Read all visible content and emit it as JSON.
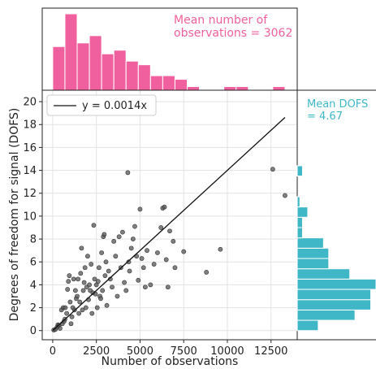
{
  "chart_data": [
    {
      "id": "scatter",
      "type": "scatter",
      "xlabel": "Number of observations",
      "ylabel": "Degrees of freedom for signal (DOFS)",
      "xlim": [
        -600,
        14000
      ],
      "ylim": [
        -0.8,
        21
      ],
      "xticks": [
        0,
        2500,
        5000,
        7500,
        10000,
        12500
      ],
      "yticks": [
        0,
        2,
        4,
        6,
        8,
        10,
        12,
        14,
        16,
        18,
        20
      ],
      "grid": true,
      "fit": {
        "label": "y = 0.0014x",
        "slope": 0.0014,
        "x_range": [
          0,
          13300
        ]
      },
      "legend_position": "top-left",
      "point_color": "#555555",
      "points": [
        [
          60,
          0.05
        ],
        [
          150,
          0.1
        ],
        [
          250,
          0.3
        ],
        [
          300,
          0.5
        ],
        [
          350,
          0.45
        ],
        [
          420,
          0.2
        ],
        [
          500,
          1.8
        ],
        [
          550,
          0.6
        ],
        [
          600,
          2.0
        ],
        [
          650,
          0.8
        ],
        [
          700,
          1.0
        ],
        [
          720,
          2.0
        ],
        [
          800,
          1.5
        ],
        [
          850,
          3.6
        ],
        [
          900,
          4.3
        ],
        [
          950,
          4.8
        ],
        [
          1000,
          2.5
        ],
        [
          1050,
          0.6
        ],
        [
          1100,
          1.2
        ],
        [
          1150,
          2.0
        ],
        [
          1200,
          4.5
        ],
        [
          1250,
          1.8
        ],
        [
          1300,
          3.5
        ],
        [
          1350,
          2.8
        ],
        [
          1400,
          3.0
        ],
        [
          1450,
          4.5
        ],
        [
          1500,
          1.5
        ],
        [
          1550,
          2.5
        ],
        [
          1600,
          5.0
        ],
        [
          1650,
          7.2
        ],
        [
          1700,
          1.8
        ],
        [
          1750,
          3.5
        ],
        [
          1800,
          4.2
        ],
        [
          1850,
          5.5
        ],
        [
          1900,
          2.0
        ],
        [
          1950,
          3.8
        ],
        [
          2000,
          6.5
        ],
        [
          2050,
          2.7
        ],
        [
          2100,
          4.0
        ],
        [
          2150,
          3.5
        ],
        [
          2200,
          5.8
        ],
        [
          2250,
          1.5
        ],
        [
          2300,
          3.3
        ],
        [
          2350,
          9.2
        ],
        [
          2400,
          4.5
        ],
        [
          2450,
          3.2
        ],
        [
          2500,
          4.0
        ],
        [
          2550,
          2.0
        ],
        [
          2600,
          4.3
        ],
        [
          2650,
          5.5
        ],
        [
          2700,
          3.0
        ],
        [
          2750,
          2.8
        ],
        [
          2800,
          6.8
        ],
        [
          2850,
          3.5
        ],
        [
          2900,
          8.2
        ],
        [
          2950,
          8.4
        ],
        [
          3000,
          4.8
        ],
        [
          3050,
          6.0
        ],
        [
          3100,
          2.2
        ],
        [
          3200,
          5.2
        ],
        [
          3300,
          4.5
        ],
        [
          3400,
          3.8
        ],
        [
          3500,
          7.8
        ],
        [
          3600,
          6.5
        ],
        [
          3700,
          3.0
        ],
        [
          3800,
          8.2
        ],
        [
          3900,
          5.5
        ],
        [
          4000,
          8.6
        ],
        [
          4100,
          4.2
        ],
        [
          4200,
          3.5
        ],
        [
          4300,
          13.8
        ],
        [
          4350,
          6.0
        ],
        [
          4400,
          5.2
        ],
        [
          4500,
          7.2
        ],
        [
          4600,
          8.0
        ],
        [
          4700,
          9.1
        ],
        [
          4800,
          6.5
        ],
        [
          4900,
          4.4
        ],
        [
          5000,
          10.6
        ],
        [
          5100,
          6.3
        ],
        [
          5200,
          5.5
        ],
        [
          5300,
          3.8
        ],
        [
          5400,
          7.0
        ],
        [
          5600,
          4.0
        ],
        [
          5800,
          5.8
        ],
        [
          6000,
          6.8
        ],
        [
          6200,
          9.0
        ],
        [
          6300,
          10.7
        ],
        [
          6400,
          10.8
        ],
        [
          6500,
          6.2
        ],
        [
          6600,
          3.8
        ],
        [
          6700,
          8.7
        ],
        [
          6900,
          7.8
        ],
        [
          7000,
          5.5
        ],
        [
          7500,
          6.9
        ],
        [
          8800,
          5.1
        ],
        [
          9600,
          7.1
        ],
        [
          12600,
          14.1
        ],
        [
          13300,
          11.8
        ]
      ]
    },
    {
      "id": "top-histogram",
      "type": "bar",
      "orientation": "vertical",
      "color": "#f0609e",
      "xlim": [
        -600,
        14000
      ],
      "bin_edges": [
        0,
        700,
        1400,
        2100,
        2800,
        3500,
        4200,
        4900,
        5600,
        6300,
        7000,
        7700,
        8400,
        9100,
        9800,
        10500,
        11200,
        11900,
        12600,
        13300
      ],
      "counts": [
        12,
        21,
        13,
        15,
        10,
        11,
        8,
        7,
        4,
        4,
        3,
        1,
        0,
        0,
        1,
        1,
        0,
        0,
        1
      ],
      "annotation": "Mean number of observations = 3062",
      "annotation_lines": [
        "Mean number of",
        "observations = 3062"
      ]
    },
    {
      "id": "right-histogram",
      "type": "bar",
      "orientation": "horizontal",
      "color": "#3fb7c6",
      "ylim": [
        -0.8,
        21
      ],
      "bin_edges": [
        0,
        0.9,
        1.8,
        2.7,
        3.6,
        4.5,
        5.4,
        6.3,
        7.2,
        8.1,
        9.0,
        9.9,
        10.8,
        11.7,
        12.6,
        13.5,
        14.4
      ],
      "counts": [
        4,
        11,
        14,
        14,
        15,
        10,
        6,
        6,
        5,
        1,
        1,
        2,
        0.5,
        0,
        0,
        1
      ],
      "annotation": "Mean DOFS = 4.67",
      "annotation_lines": [
        "Mean DOFS",
        "= 4.67"
      ]
    }
  ]
}
